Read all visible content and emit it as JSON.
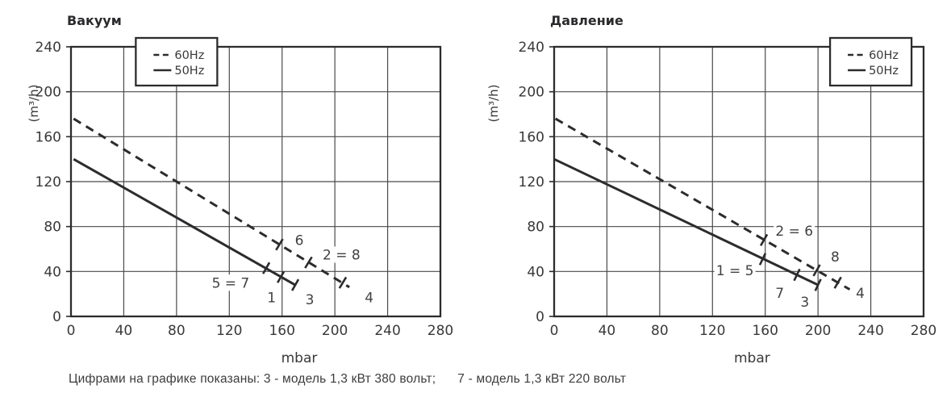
{
  "caption": "Цифрами на графике показаны: 3 - модель 1,3 кВт 380 вольт;      7 - модель 1,3 кВт 220 вольт",
  "colors": {
    "background": "#ffffff",
    "curve": "#2c2c2e",
    "border": "#2c2c2e",
    "grid": "#4a4a4c",
    "text": "#39393b",
    "annotation": "#414043"
  },
  "chart_data": [
    {
      "type": "line",
      "title": "Вакуум",
      "xlabel": "mbar",
      "ylabel": "(m³/h)",
      "xlim": [
        0,
        280
      ],
      "ylim": [
        0,
        240
      ],
      "xticks": [
        0,
        40,
        80,
        120,
        160,
        200,
        240,
        280
      ],
      "yticks": [
        0,
        40,
        80,
        120,
        160,
        200,
        240
      ],
      "grid": true,
      "xlabel_at_x": 173,
      "legend": {
        "position": "top-inside",
        "at_x": 80,
        "entries": [
          {
            "label": "60Hz",
            "style": "dashed"
          },
          {
            "label": "50Hz",
            "style": "solid"
          }
        ]
      },
      "series": [
        {
          "name": "60Hz",
          "style": "dashed",
          "points": [
            [
              2,
              176
            ],
            [
              211,
              26
            ]
          ],
          "markers": [
            [
              158,
              64
            ],
            [
              180,
              48
            ],
            [
              206,
              30
            ]
          ]
        },
        {
          "name": "50Hz",
          "style": "solid",
          "points": [
            [
              2,
              140
            ],
            [
              170,
              28
            ]
          ],
          "markers": [
            [
              148,
              43
            ],
            [
              159,
              35
            ],
            [
              170,
              28
            ]
          ]
        }
      ],
      "annotations": [
        {
          "text": "6",
          "x": 173,
          "y": 68
        },
        {
          "text": "2 = 8",
          "x": 205,
          "y": 55
        },
        {
          "text": "5 = 7",
          "x": 121,
          "y": 30
        },
        {
          "text": "1",
          "x": 152,
          "y": 17
        },
        {
          "text": "3",
          "x": 181,
          "y": 15
        },
        {
          "text": "4",
          "x": 226,
          "y": 17
        }
      ]
    },
    {
      "type": "line",
      "title": "Давление",
      "xlabel": "mbar",
      "ylabel": "(m³/h)",
      "xlim": [
        0,
        280
      ],
      "ylim": [
        0,
        240
      ],
      "xticks": [
        0,
        40,
        80,
        120,
        160,
        200,
        240,
        280
      ],
      "yticks": [
        0,
        40,
        80,
        120,
        160,
        200,
        240
      ],
      "grid": true,
      "xlabel_at_x": 150,
      "legend": {
        "position": "top-inside",
        "at_x": 240,
        "entries": [
          {
            "label": "60Hz",
            "style": "dashed"
          },
          {
            "label": "50Hz",
            "style": "solid"
          }
        ]
      },
      "series": [
        {
          "name": "60Hz",
          "style": "dashed",
          "points": [
            [
              1,
              176
            ],
            [
              224,
              24
            ]
          ],
          "markers": [
            [
              159,
              68
            ],
            [
              199,
              41
            ],
            [
              215,
              30
            ]
          ]
        },
        {
          "name": "50Hz",
          "style": "solid",
          "points": [
            [
              0,
              140
            ],
            [
              200,
              28
            ]
          ],
          "markers": [
            [
              158,
              51
            ],
            [
              184,
              37
            ],
            [
              200,
              28
            ]
          ]
        }
      ],
      "annotations": [
        {
          "text": "2 = 6",
          "x": 182,
          "y": 76
        },
        {
          "text": "8",
          "x": 213,
          "y": 53
        },
        {
          "text": "1 = 5",
          "x": 137,
          "y": 41
        },
        {
          "text": "7",
          "x": 171,
          "y": 21
        },
        {
          "text": "3",
          "x": 190,
          "y": 13
        },
        {
          "text": "4",
          "x": 232,
          "y": 21
        }
      ]
    }
  ]
}
